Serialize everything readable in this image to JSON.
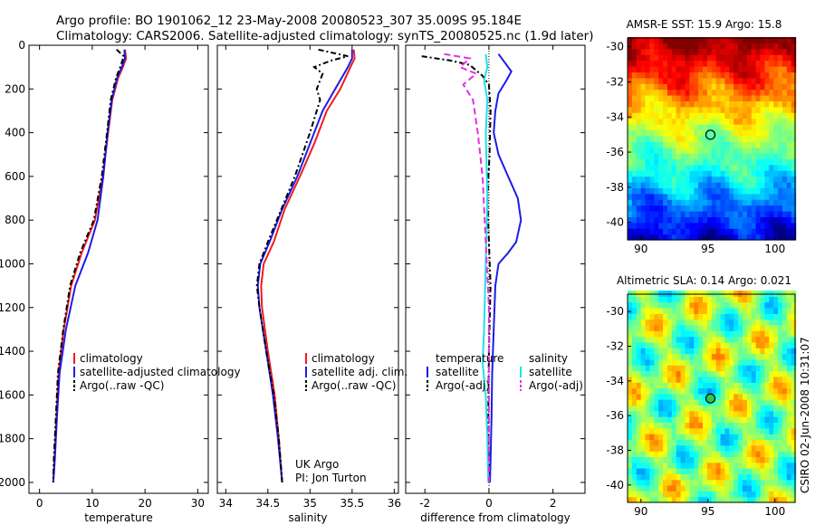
{
  "header": {
    "line1": "Argo profile: BO 1901062_12 23-May-2008 20080523_307 35.009S 95.184E",
    "line2": "Climatology: CARS2006. Satellite-adjusted climatology: synTS_20080525.nc (1.9d later)"
  },
  "footer": {
    "credit": "UK Argo",
    "pi": "PI: Jon Turton",
    "stamp": "CSIRO 02-Jun-2008 10:31:07"
  },
  "colors": {
    "red": "#ee1c1c",
    "blue": "#1c1ce6",
    "black": "#000000",
    "cyan": "#22e0e8",
    "magenta": "#e62ee6"
  },
  "chart_data": [
    {
      "type": "line",
      "panel": "temperature",
      "xlabel": "temperature",
      "ylabel": "",
      "xlim": [
        -2,
        32
      ],
      "ylim": [
        2050,
        0
      ],
      "xticks": [
        0,
        10,
        20,
        30
      ],
      "yticks": [
        0,
        200,
        400,
        600,
        800,
        1000,
        1200,
        1400,
        1600,
        1800,
        2000
      ],
      "legend": {
        "placement": "lower-right",
        "entries": [
          "climatology",
          "satellite-adjusted climatology",
          "Argo(..raw -QC)"
        ]
      },
      "series": [
        {
          "name": "climatology",
          "color": "red",
          "style": "solid",
          "points": [
            [
              16.2,
              20
            ],
            [
              16.4,
              60
            ],
            [
              15.8,
              100
            ],
            [
              14.9,
              150
            ],
            [
              13.8,
              250
            ],
            [
              13,
              400
            ],
            [
              12,
              600
            ],
            [
              10.5,
              800
            ],
            [
              8,
              950
            ],
            [
              6,
              1100
            ],
            [
              4.6,
              1300
            ],
            [
              3.6,
              1500
            ],
            [
              3.2,
              1700
            ],
            [
              2.8,
              1900
            ],
            [
              2.6,
              2000
            ]
          ]
        },
        {
          "name": "satellite-adjusted climatology",
          "color": "blue",
          "style": "solid",
          "points": [
            [
              16.1,
              20
            ],
            [
              16.2,
              60
            ],
            [
              15.6,
              100
            ],
            [
              14.7,
              150
            ],
            [
              13.7,
              250
            ],
            [
              12.9,
              400
            ],
            [
              12.1,
              600
            ],
            [
              11,
              800
            ],
            [
              9.2,
              950
            ],
            [
              6.8,
              1100
            ],
            [
              5,
              1300
            ],
            [
              3.8,
              1500
            ],
            [
              3.3,
              1700
            ],
            [
              2.9,
              1900
            ],
            [
              2.6,
              2000
            ]
          ]
        },
        {
          "name": "Argo(..raw -QC)",
          "color": "black",
          "style": "dashdot",
          "points": [
            [
              14.6,
              20
            ],
            [
              16,
              50
            ],
            [
              15.3,
              100
            ],
            [
              14.5,
              150
            ],
            [
              13.5,
              250
            ],
            [
              12.8,
              400
            ],
            [
              11.8,
              600
            ],
            [
              10.3,
              800
            ],
            [
              7.7,
              950
            ],
            [
              5.8,
              1100
            ],
            [
              4.5,
              1300
            ],
            [
              3.5,
              1500
            ],
            [
              3.1,
              1700
            ],
            [
              2.7,
              1900
            ],
            [
              2.6,
              2000
            ]
          ]
        }
      ]
    },
    {
      "type": "line",
      "panel": "salinity",
      "xlabel": "salinity",
      "ylabel": "",
      "xlim": [
        33.9,
        36.05
      ],
      "ylim": [
        2050,
        0
      ],
      "xticks": [
        34,
        34.5,
        35,
        35.5,
        36
      ],
      "legend": {
        "placement": "lower-right",
        "entries": [
          "climatology",
          "satellite adj. clim.",
          "Argo(..raw -QC)"
        ]
      },
      "series": [
        {
          "name": "climatology",
          "color": "red",
          "style": "solid",
          "points": [
            [
              35.52,
              20
            ],
            [
              35.53,
              60
            ],
            [
              35.48,
              100
            ],
            [
              35.36,
              200
            ],
            [
              35.2,
              300
            ],
            [
              35.05,
              450
            ],
            [
              34.88,
              600
            ],
            [
              34.7,
              750
            ],
            [
              34.57,
              900
            ],
            [
              34.45,
              1000
            ],
            [
              34.42,
              1100
            ],
            [
              34.43,
              1200
            ],
            [
              34.5,
              1400
            ],
            [
              34.58,
              1600
            ],
            [
              34.63,
              1800
            ],
            [
              34.67,
              2000
            ]
          ]
        },
        {
          "name": "satellite adj. clim.",
          "color": "blue",
          "style": "solid",
          "points": [
            [
              35.5,
              20
            ],
            [
              35.5,
              60
            ],
            [
              35.45,
              100
            ],
            [
              35.3,
              200
            ],
            [
              35.15,
              300
            ],
            [
              35.0,
              450
            ],
            [
              34.85,
              600
            ],
            [
              34.67,
              750
            ],
            [
              34.52,
              900
            ],
            [
              34.41,
              1000
            ],
            [
              34.38,
              1100
            ],
            [
              34.4,
              1200
            ],
            [
              34.48,
              1400
            ],
            [
              34.56,
              1600
            ],
            [
              34.62,
              1800
            ],
            [
              34.67,
              2000
            ]
          ]
        },
        {
          "name": "Argo(..raw -QC)",
          "color": "black",
          "style": "dashdot",
          "points": [
            [
              35.1,
              20
            ],
            [
              35.45,
              50
            ],
            [
              35.25,
              70
            ],
            [
              35.05,
              100
            ],
            [
              35.15,
              130
            ],
            [
              35.08,
              200
            ],
            [
              35.12,
              250
            ],
            [
              35.0,
              400
            ],
            [
              34.82,
              600
            ],
            [
              34.66,
              750
            ],
            [
              34.5,
              900
            ],
            [
              34.4,
              1000
            ],
            [
              34.37,
              1100
            ],
            [
              34.4,
              1200
            ],
            [
              34.48,
              1400
            ],
            [
              34.57,
              1600
            ],
            [
              34.63,
              1800
            ],
            [
              34.67,
              2000
            ]
          ]
        }
      ]
    },
    {
      "type": "line",
      "panel": "difference",
      "xlabel": "difference from climatology",
      "ylabel": "",
      "xlim": [
        -2.6,
        3.0
      ],
      "ylim": [
        2050,
        0
      ],
      "xticks": [
        -2,
        0,
        2
      ],
      "legend": {
        "placement": "lower-center",
        "groups": [
          {
            "title": "temperature",
            "entries": [
              "satellite",
              "Argo(-adj)"
            ]
          },
          {
            "title": "salinity",
            "entries": [
              "satellite",
              "Argo(-adj)"
            ]
          }
        ]
      },
      "series": [
        {
          "name": "temperature satellite",
          "color": "blue",
          "style": "solid",
          "points": [
            [
              0.3,
              40
            ],
            [
              0.5,
              80
            ],
            [
              0.7,
              120
            ],
            [
              0.55,
              160
            ],
            [
              0.3,
              220
            ],
            [
              0.2,
              300
            ],
            [
              0.15,
              400
            ],
            [
              0.3,
              500
            ],
            [
              0.6,
              600
            ],
            [
              0.9,
              700
            ],
            [
              1.0,
              800
            ],
            [
              0.85,
              900
            ],
            [
              0.6,
              950
            ],
            [
              0.3,
              1000
            ],
            [
              0.2,
              1100
            ],
            [
              0.15,
              1300
            ],
            [
              0.1,
              1500
            ],
            [
              0.08,
              1700
            ],
            [
              0.05,
              1900
            ],
            [
              0.03,
              2000
            ]
          ]
        },
        {
          "name": "temperature Argo(-adj)",
          "color": "black",
          "style": "dashdot",
          "points": [
            [
              -2.1,
              50
            ],
            [
              -1.2,
              70
            ],
            [
              -0.6,
              90
            ],
            [
              -0.2,
              140
            ],
            [
              0.0,
              180
            ],
            [
              0.05,
              300
            ],
            [
              0.02,
              500
            ],
            [
              -0.05,
              700
            ],
            [
              0.0,
              900
            ],
            [
              0.05,
              1100
            ],
            [
              0.0,
              1400
            ],
            [
              -0.02,
              1700
            ],
            [
              0.0,
              2000
            ]
          ]
        },
        {
          "name": "salinity satellite",
          "color": "cyan",
          "style": "solid",
          "points": [
            [
              -0.1,
              40
            ],
            [
              -0.05,
              100
            ],
            [
              -0.15,
              160
            ],
            [
              -0.05,
              250
            ],
            [
              -0.1,
              400
            ],
            [
              -0.05,
              700
            ],
            [
              -0.1,
              1000
            ],
            [
              -0.15,
              1300
            ],
            [
              -0.2,
              1450
            ],
            [
              -0.1,
              1600
            ],
            [
              -0.05,
              1800
            ],
            [
              -0.02,
              2000
            ]
          ]
        },
        {
          "name": "salinity Argo(-adj)",
          "color": "magenta",
          "style": "dashed",
          "points": [
            [
              -1.4,
              40
            ],
            [
              -0.6,
              60
            ],
            [
              -0.9,
              100
            ],
            [
              -0.4,
              130
            ],
            [
              -0.8,
              180
            ],
            [
              -0.5,
              250
            ],
            [
              -0.35,
              400
            ],
            [
              -0.2,
              600
            ],
            [
              -0.1,
              900
            ],
            [
              0.0,
              1200
            ],
            [
              0.0,
              1500
            ],
            [
              0.0,
              2000
            ]
          ]
        }
      ]
    },
    {
      "type": "heatmap",
      "panel": "sst-map",
      "title": "AMSR-E SST: 15.9 Argo: 15.8",
      "xlim": [
        89,
        101.5
      ],
      "ylim": [
        -41,
        -29.5
      ],
      "xticks": [
        90,
        95,
        100
      ],
      "yticks": [
        -30,
        -32,
        -34,
        -36,
        -38,
        -40
      ],
      "marker": {
        "lon": 95.184,
        "lat": -35.009
      },
      "palette": "jet"
    },
    {
      "type": "heatmap",
      "panel": "sla-map",
      "title": "Altimetric SLA: 0.14 Argo: 0.021",
      "xlim": [
        89,
        101.5
      ],
      "ylim": [
        -41,
        -29
      ],
      "xticks": [
        90,
        95,
        100
      ],
      "yticks": [
        -30,
        -32,
        -34,
        -36,
        -38,
        -40
      ],
      "marker": {
        "lon": 95.184,
        "lat": -35.009
      },
      "palette": "jet"
    }
  ]
}
